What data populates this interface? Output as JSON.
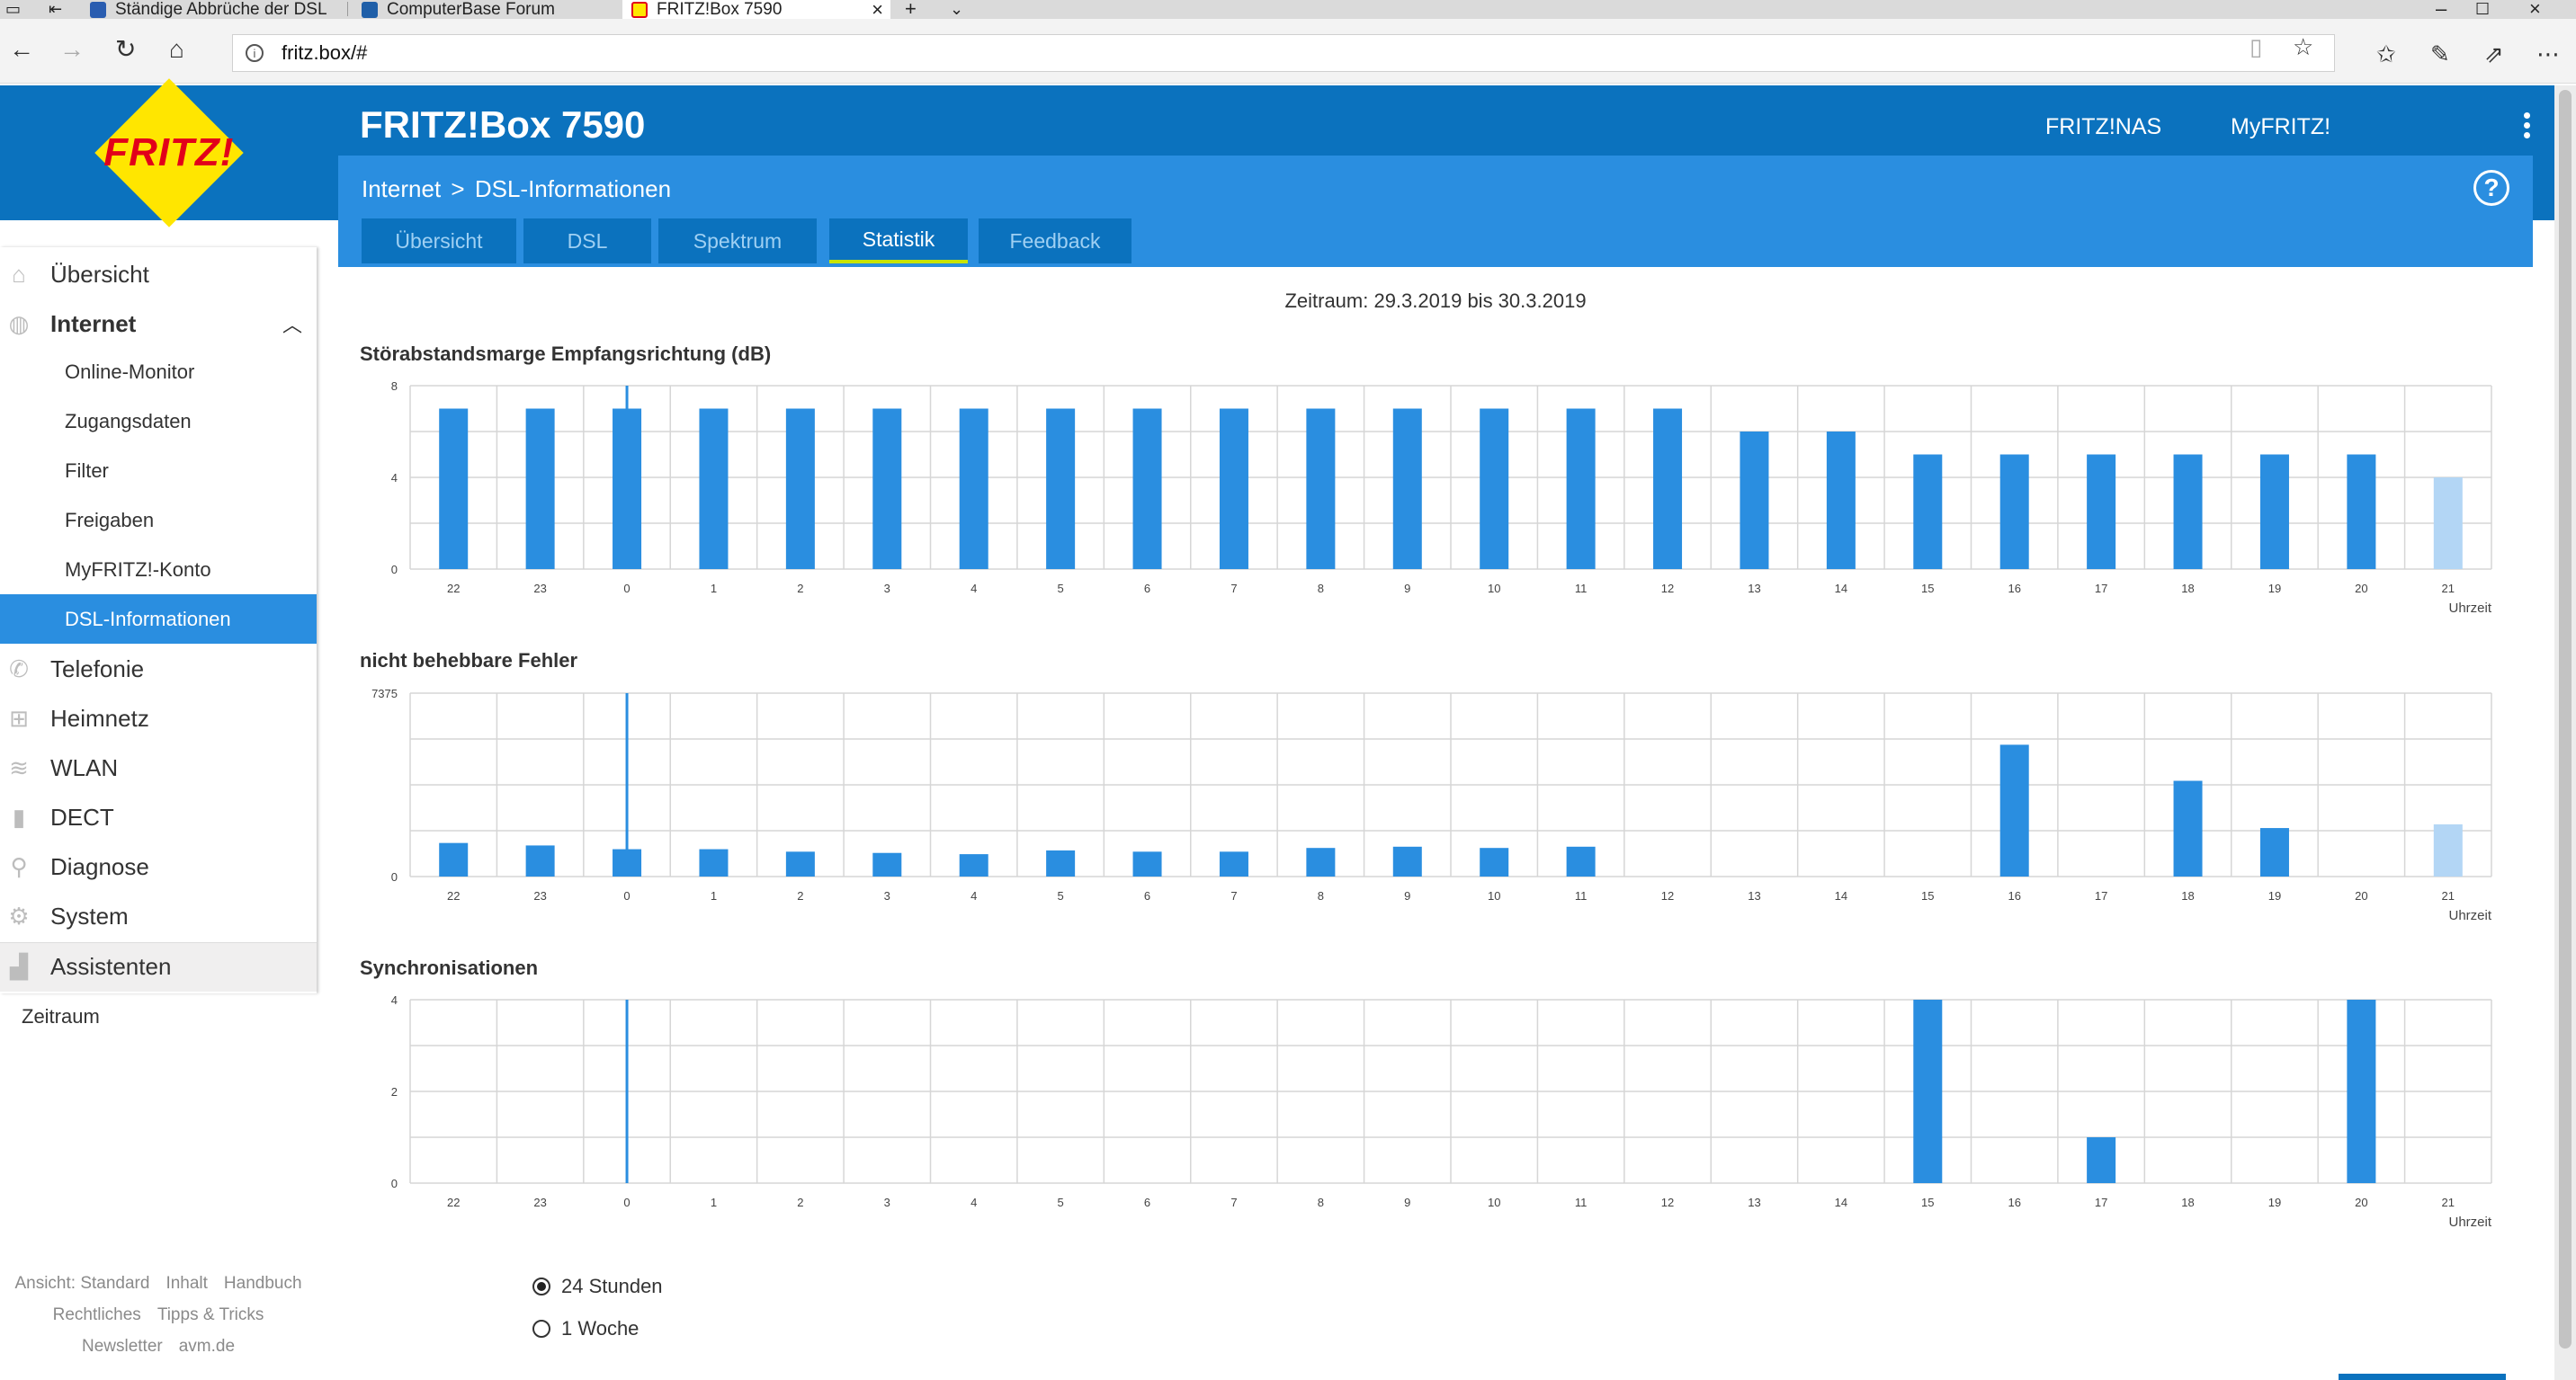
{
  "browser": {
    "tabs": [
      {
        "title": "Ständige Abbrüche der DSL",
        "active": false
      },
      {
        "title": "ComputerBase Forum",
        "active": false
      },
      {
        "title": "FRITZ!Box 7590",
        "active": true
      }
    ],
    "url": "fritz.box/#"
  },
  "header": {
    "logo_text": "FRITZ!",
    "product": "FRITZ!Box 7590",
    "links": [
      "FRITZ!NAS",
      "MyFRITZ!"
    ]
  },
  "breadcrumb": {
    "parent": "Internet",
    "sep": ">",
    "current": "DSL-Informationen"
  },
  "page_tabs": [
    "Übersicht",
    "DSL",
    "Spektrum",
    "Statistik",
    "Feedback"
  ],
  "active_tab": "Statistik",
  "sidebar": {
    "items": [
      {
        "label": "Übersicht",
        "icon": "home-icon"
      },
      {
        "label": "Internet",
        "icon": "globe-icon",
        "expanded": true
      },
      {
        "label": "Online-Monitor",
        "sub": true
      },
      {
        "label": "Zugangsdaten",
        "sub": true
      },
      {
        "label": "Filter",
        "sub": true
      },
      {
        "label": "Freigaben",
        "sub": true
      },
      {
        "label": "MyFRITZ!-Konto",
        "sub": true
      },
      {
        "label": "DSL-Informationen",
        "sub": true,
        "selected": true
      },
      {
        "label": "Telefonie",
        "icon": "phone-icon"
      },
      {
        "label": "Heimnetz",
        "icon": "network-icon"
      },
      {
        "label": "WLAN",
        "icon": "wifi-icon"
      },
      {
        "label": "DECT",
        "icon": "dect-icon"
      },
      {
        "label": "Diagnose",
        "icon": "diagnose-icon"
      },
      {
        "label": "System",
        "icon": "system-icon"
      }
    ],
    "assistant": "Assistenten",
    "footer": [
      [
        "Ansicht: Standard",
        "Inhalt",
        "Handbuch"
      ],
      [
        "Rechtliches",
        "Tipps & Tricks"
      ],
      [
        "Newsletter",
        "avm.de"
      ]
    ]
  },
  "period_text": "Zeitraum: 29.3.2019 bis 30.3.2019",
  "colors": {
    "bar": "#2a8ee0",
    "bar_current": "#b3d6f5",
    "grid": "#d6d6d6",
    "marker": "#2a8ee0"
  },
  "chart_data": [
    {
      "type": "bar",
      "title": "Störabstandsmarge Empfangsrichtung (dB)",
      "xlabel": "Uhrzeit",
      "categories": [
        "22",
        "23",
        "0",
        "1",
        "2",
        "3",
        "4",
        "5",
        "6",
        "7",
        "8",
        "9",
        "10",
        "11",
        "12",
        "13",
        "14",
        "15",
        "16",
        "17",
        "18",
        "19",
        "20",
        "21"
      ],
      "values": [
        7,
        7,
        7,
        7,
        7,
        7,
        7,
        7,
        7,
        7,
        7,
        7,
        7,
        7,
        7,
        6,
        6,
        5,
        5,
        5,
        5,
        5,
        5,
        4
      ],
      "ylim": [
        0,
        8
      ],
      "yticks": [
        "0",
        "4",
        "8"
      ],
      "marker_index": 2,
      "current_index": 23
    },
    {
      "type": "bar",
      "title": "nicht behebbare Fehler",
      "xlabel": "Uhrzeit",
      "categories": [
        "22",
        "23",
        "0",
        "1",
        "2",
        "3",
        "4",
        "5",
        "6",
        "7",
        "8",
        "9",
        "10",
        "11",
        "12",
        "13",
        "14",
        "15",
        "16",
        "17",
        "18",
        "19",
        "20",
        "21"
      ],
      "values": [
        1350,
        1250,
        1100,
        1100,
        1000,
        950,
        900,
        1050,
        1000,
        1000,
        1150,
        1200,
        1150,
        1200,
        0,
        0,
        0,
        0,
        5300,
        0,
        3850,
        1950,
        0,
        2100
      ],
      "ylim": [
        0,
        7375
      ],
      "yticks": [
        "0",
        "7375"
      ],
      "marker_index": 2,
      "current_index": 23
    },
    {
      "type": "bar",
      "title": "Synchronisationen",
      "xlabel": "Uhrzeit",
      "categories": [
        "22",
        "23",
        "0",
        "1",
        "2",
        "3",
        "4",
        "5",
        "6",
        "7",
        "8",
        "9",
        "10",
        "11",
        "12",
        "13",
        "14",
        "15",
        "16",
        "17",
        "18",
        "19",
        "20",
        "21"
      ],
      "values": [
        0,
        0,
        0,
        0,
        0,
        0,
        0,
        0,
        0,
        0,
        0,
        0,
        0,
        0,
        0,
        0,
        0,
        4,
        0,
        1,
        0,
        0,
        4,
        0
      ],
      "ylim": [
        0,
        4
      ],
      "yticks": [
        "0",
        "2",
        "4"
      ],
      "marker_index": 2,
      "current_index": 23
    }
  ],
  "range": {
    "label": "Zeitraum",
    "options": [
      {
        "label": "24 Stunden",
        "checked": true
      },
      {
        "label": "1 Woche",
        "checked": false
      }
    ]
  }
}
